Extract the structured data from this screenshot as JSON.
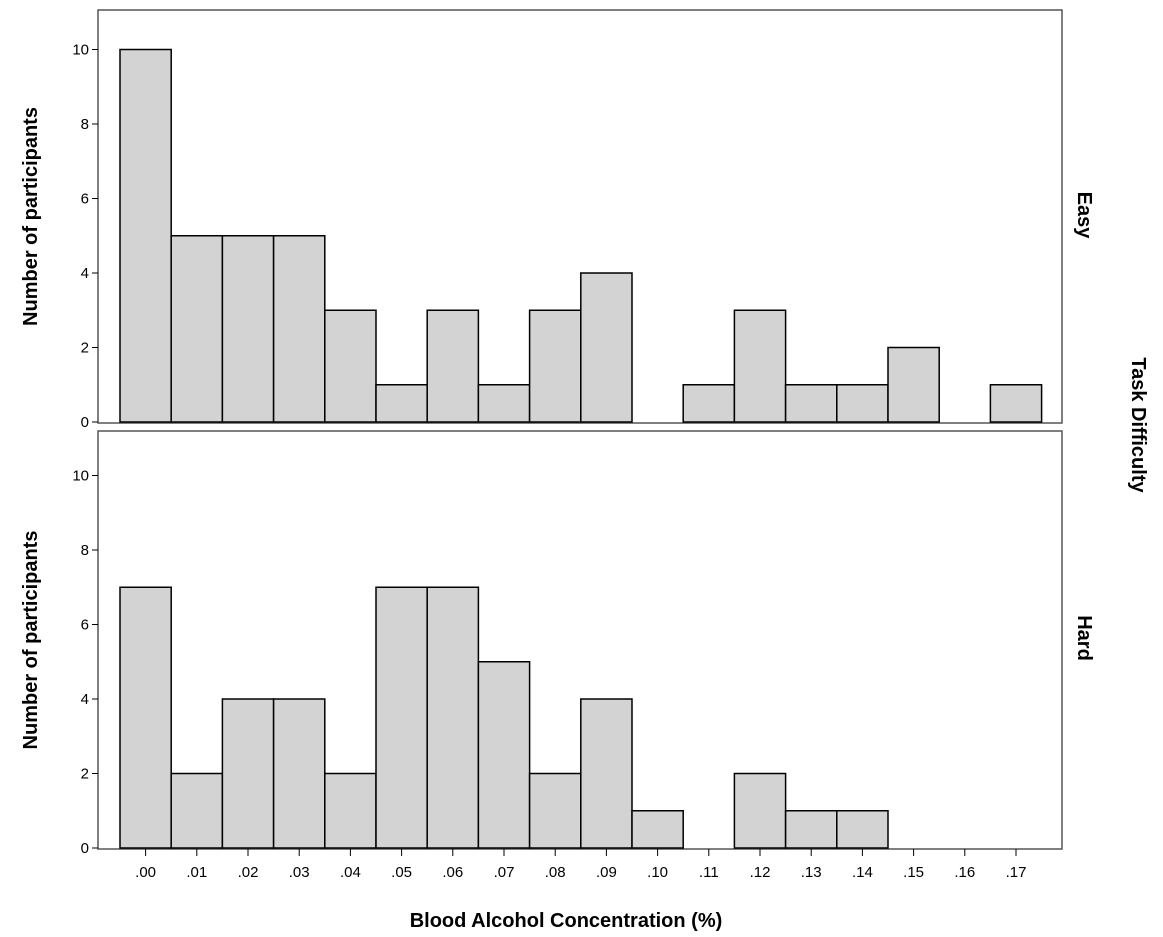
{
  "chart_data": {
    "type": "bar",
    "xlabel": "Blood Alcohol Concentration (%)",
    "ylabel": "Number of participants",
    "facet_label": "Task Difficulty",
    "categories": [
      ".00",
      ".01",
      ".02",
      ".03",
      ".04",
      ".05",
      ".06",
      ".07",
      ".08",
      ".09",
      ".10",
      ".11",
      ".12",
      ".13",
      ".14",
      ".15",
      ".16",
      ".17"
    ],
    "ylim": [
      0,
      11
    ],
    "yticks": [
      0,
      2,
      4,
      6,
      8,
      10
    ],
    "grid": false,
    "panels": [
      {
        "name": "Easy",
        "values": [
          10,
          5,
          5,
          5,
          3,
          1,
          3,
          1,
          3,
          4,
          0,
          1,
          3,
          1,
          1,
          2,
          0,
          1
        ]
      },
      {
        "name": "Hard",
        "values": [
          7,
          2,
          4,
          4,
          2,
          7,
          7,
          5,
          2,
          4,
          1,
          0,
          2,
          1,
          1,
          0,
          0,
          0
        ]
      }
    ],
    "colors": {
      "bar_fill": "#d3d3d3",
      "bar_stroke": "#000000",
      "frame": "#555555"
    }
  }
}
